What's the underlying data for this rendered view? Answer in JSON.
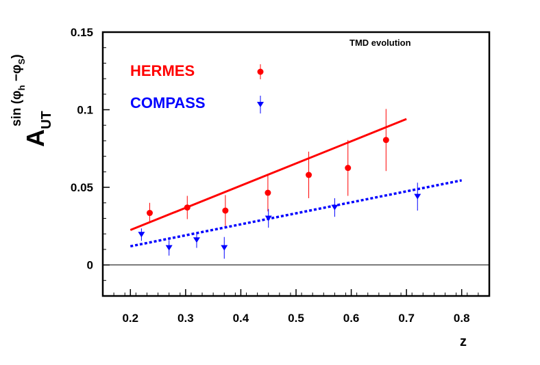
{
  "chart_data": {
    "type": "scatter",
    "annotation": "TMD evolution",
    "xlabel": "z",
    "ylabel": {
      "main": "A",
      "sub": "UT",
      "sup_prefix": "sin (",
      "phi1": "φ",
      "phi1_sub": "h",
      "minus": " −",
      "phi2": "φ",
      "phi2_sub": "S",
      "close": ")"
    },
    "xlim": [
      0.15,
      0.85
    ],
    "ylim": [
      -0.02,
      0.15
    ],
    "x_ticks": [
      {
        "value": 0.2,
        "label": "0.2"
      },
      {
        "value": 0.3,
        "label": "0.3"
      },
      {
        "value": 0.4,
        "label": "0.4"
      },
      {
        "value": 0.5,
        "label": "0.5"
      },
      {
        "value": 0.6,
        "label": "0.6"
      },
      {
        "value": 0.7,
        "label": "0.7"
      },
      {
        "value": 0.8,
        "label": "0.8"
      }
    ],
    "y_ticks": [
      {
        "value": 0,
        "label": "0"
      },
      {
        "value": 0.05,
        "label": "0.05"
      },
      {
        "value": 0.1,
        "label": "0.1"
      },
      {
        "value": 0.15,
        "label": "0.15"
      }
    ],
    "zero_line": 0,
    "grid": false,
    "legend_position": "top-left",
    "series": [
      {
        "name": "HERMES",
        "color": "#ff0000",
        "marker": "circle",
        "points": [
          {
            "x": 0.235,
            "y": 0.0335,
            "err": 0.0065
          },
          {
            "x": 0.303,
            "y": 0.037,
            "err": 0.0075
          },
          {
            "x": 0.372,
            "y": 0.035,
            "err": 0.01
          },
          {
            "x": 0.449,
            "y": 0.0465,
            "err": 0.012
          },
          {
            "x": 0.523,
            "y": 0.058,
            "err": 0.015
          },
          {
            "x": 0.594,
            "y": 0.0625,
            "err": 0.018
          },
          {
            "x": 0.663,
            "y": 0.0805,
            "err": 0.02
          }
        ],
        "curve": {
          "style": "solid",
          "points": [
            [
              0.2,
              0.0225
            ],
            [
              0.7,
              0.094
            ]
          ]
        }
      },
      {
        "name": "COMPASS",
        "color": "#0000ff",
        "marker": "triangle-down",
        "points": [
          {
            "x": 0.22,
            "y": 0.0195,
            "err": 0.004
          },
          {
            "x": 0.27,
            "y": 0.011,
            "err": 0.005
          },
          {
            "x": 0.32,
            "y": 0.016,
            "err": 0.005
          },
          {
            "x": 0.37,
            "y": 0.011,
            "err": 0.007
          },
          {
            "x": 0.45,
            "y": 0.03,
            "err": 0.006
          },
          {
            "x": 0.57,
            "y": 0.037,
            "err": 0.006
          },
          {
            "x": 0.72,
            "y": 0.044,
            "err": 0.009
          }
        ],
        "curve": {
          "style": "dotted",
          "points": [
            [
              0.2,
              0.012
            ],
            [
              0.8,
              0.0545
            ]
          ]
        }
      }
    ]
  }
}
